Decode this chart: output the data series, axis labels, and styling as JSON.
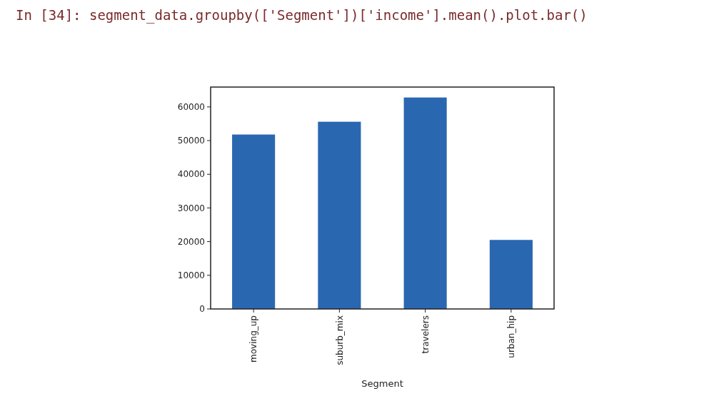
{
  "chart_data": {
    "type": "bar",
    "xlabel": "Segment",
    "annotations": [
      "In [34]: segment_data.groupby(['Segment'])['income'].mean().plot.bar()"
    ],
    "categories": [
      "moving_up",
      "suburb_mix",
      "travelers",
      "urban_hip"
    ],
    "values": [
      51800,
      55600,
      62800,
      20500
    ],
    "color": "#2a67b1",
    "ylim": [
      0,
      65900
    ],
    "yticks": [
      0,
      10000,
      20000,
      30000,
      40000,
      50000,
      60000
    ],
    "grid": false
  }
}
